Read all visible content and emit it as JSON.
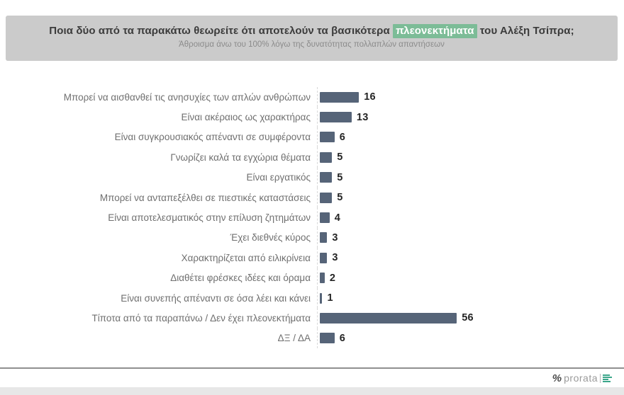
{
  "header": {
    "title_prefix": "Ποια δύο από τα παρακάτω θεωρείτε ότι αποτελούν τα βασικότερα ",
    "title_highlight": "πλεονεκτήματα",
    "title_suffix": " του Αλέξη Τσίπρα;",
    "subtitle": "Άθροισμα άνω του 100% λόγω της δυνατότητας πολλαπλών απαντήσεων",
    "highlight_color": "#7cbc97",
    "band_color": "#cbcbcb"
  },
  "chart_data": {
    "type": "bar",
    "orientation": "horizontal",
    "title": "Ποια δύο από τα παρακάτω θεωρείτε ότι αποτελούν τα βασικότερα πλεονεκτήματα του Αλέξη Τσίπρα;",
    "subtitle": "Άθροισμα άνω του 100% λόγω της δυνατότητας πολλαπλών απαντήσεων",
    "categories": [
      "Μπορεί να αισθανθεί τις ανησυχίες των απλών ανθρώπων",
      "Είναι ακέραιος ως χαρακτήρας",
      "Είναι συγκρουσιακός απέναντι σε συμφέροντα",
      "Γνωρίζει καλά τα εγχώρια θέματα",
      "Είναι εργατικός",
      "Μπορεί να ανταπεξέλθει σε πιεστικές καταστάσεις",
      "Είναι αποτελεσματικός στην επίλυση ζητημάτων",
      "Έχει διεθνές κύρος",
      "Χαρακτηρίζεται από ειλικρίνεια",
      "Διαθέτει φρέσκες ιδέες και όραμα",
      "Είναι συνεπής απέναντι σε όσα λέει και κάνει",
      "Τίποτα από τα παραπάνω / Δεν έχει πλεονεκτήματα",
      "ΔΞ / ΔΑ"
    ],
    "values": [
      16,
      13,
      6,
      5,
      5,
      5,
      4,
      3,
      3,
      2,
      1,
      56,
      6
    ],
    "unit": "%",
    "xlim": [
      0,
      60
    ],
    "value_labels_shown": true,
    "grid": false,
    "bar_color": "#566478",
    "value_label_color": "#242424",
    "category_label_color": "#6f6f6f"
  },
  "footer": {
    "logo_percent": "%",
    "logo_text": "prorata",
    "logo_icon": "bar-chart-icon",
    "logo_text_color": "#9a9a9a",
    "logo_icon_color": "#3ba68a"
  }
}
